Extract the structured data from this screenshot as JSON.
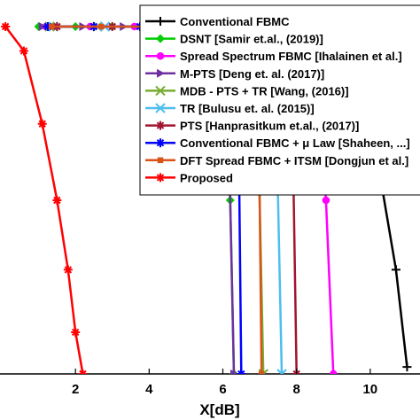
{
  "chart_data": {
    "type": "line",
    "title": "",
    "xlabel": "X[dB]",
    "ylabel": "",
    "xlim": [
      0,
      11
    ],
    "ylim": [
      0,
      1
    ],
    "xticks": [
      2,
      4,
      6,
      8,
      10
    ],
    "grid": false,
    "legend_position": "top-right",
    "series": [
      {
        "name": "Conventional FBMC",
        "color": "#000000",
        "marker": "plus",
        "x": [
          6.9,
          7.6,
          8.2,
          8.8,
          9.4,
          9.9,
          10.3,
          10.7,
          11.0
        ],
        "y": [
          1.0,
          0.985,
          0.97,
          0.93,
          0.85,
          0.74,
          0.55,
          0.3,
          0.02
        ]
      },
      {
        "name": "DSNT [Samir et.al., (2019)]",
        "color": "#00cc00",
        "marker": "diamond",
        "x": [
          1.0,
          2.0,
          3.0,
          4.0,
          5.0,
          5.9,
          6.2,
          6.3
        ],
        "y": [
          1.0,
          1.0,
          1.0,
          1.0,
          1.0,
          0.99,
          0.5,
          0.0
        ]
      },
      {
        "name": "Spread Spectrum FBMC [Ihalainen et al.]",
        "color": "#ff00ff",
        "marker": "circle",
        "x": [
          1.2,
          2.4,
          3.6,
          4.8,
          6.0,
          7.2,
          8.4,
          8.8,
          9.0
        ],
        "y": [
          1.0,
          1.0,
          1.0,
          1.0,
          1.0,
          1.0,
          0.99,
          0.5,
          0.0
        ]
      },
      {
        "name": "M-PTS [Deng et. al. (2017)]",
        "color": "#7030a0",
        "marker": "triangle-right",
        "x": [
          1.1,
          2.2,
          3.3,
          4.4,
          5.5,
          6.1,
          6.3
        ],
        "y": [
          1.0,
          1.0,
          1.0,
          1.0,
          1.0,
          0.99,
          0.0
        ]
      },
      {
        "name": "MDB - PTS + TR [Wang, (2016)]",
        "color": "#77ac30",
        "marker": "x",
        "x": [
          1.3,
          2.6,
          3.9,
          5.2,
          6.5,
          6.9,
          7.1
        ],
        "y": [
          1.0,
          1.0,
          1.0,
          1.0,
          1.0,
          0.99,
          0.0
        ]
      },
      {
        "name": "TR [Bulusu et. al. (2015)]",
        "color": "#4dbeee",
        "marker": "x",
        "x": [
          1.4,
          2.8,
          4.2,
          5.6,
          7.0,
          7.4,
          7.6
        ],
        "y": [
          1.0,
          1.0,
          1.0,
          1.0,
          1.0,
          0.99,
          0.0
        ]
      },
      {
        "name": "PTS [Hanprasitkum et.al., (2017)]",
        "color": "#a2142f",
        "marker": "star",
        "x": [
          1.5,
          3.0,
          4.5,
          6.0,
          7.5,
          7.85,
          8.0
        ],
        "y": [
          1.0,
          1.0,
          1.0,
          1.0,
          1.0,
          0.99,
          0.0
        ]
      },
      {
        "name": "Conventional FBMC + μ Law [Shaheen, ...]",
        "color": "#0000ff",
        "marker": "star",
        "x": [
          1.25,
          2.5,
          3.75,
          5.0,
          6.2,
          6.4,
          6.5
        ],
        "y": [
          1.0,
          1.0,
          1.0,
          1.0,
          1.0,
          0.99,
          0.0
        ]
      },
      {
        "name": "DFT Spread FBMC + ITSM [Dongjun et al.]",
        "color": "#d95319",
        "marker": "square",
        "x": [
          1.35,
          2.7,
          4.05,
          5.4,
          6.7,
          6.95,
          7.05
        ],
        "y": [
          1.0,
          1.0,
          1.0,
          1.0,
          1.0,
          0.99,
          0.0
        ]
      },
      {
        "name": "Proposed",
        "color": "#ff0000",
        "marker": "star",
        "x": [
          0.1,
          0.6,
          1.1,
          1.5,
          1.8,
          2.0,
          2.2
        ],
        "y": [
          1.0,
          0.93,
          0.72,
          0.5,
          0.3,
          0.12,
          0.0
        ]
      }
    ]
  }
}
